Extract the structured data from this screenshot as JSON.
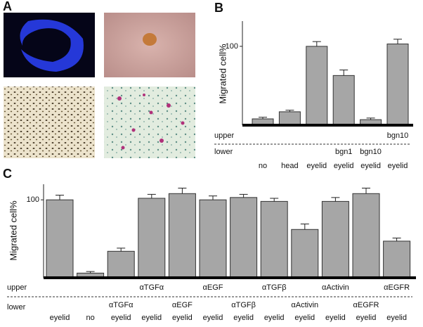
{
  "panel_a": {
    "label": "A"
  },
  "chart_data": [
    {
      "type": "bar",
      "panel": "B",
      "ylabel": "Migrated cell%",
      "row_labels": [
        "upper",
        "lower"
      ],
      "upper": [
        null,
        null,
        null,
        null,
        null,
        "bgn10"
      ],
      "lower_treatment": [
        null,
        null,
        null,
        "bgn1",
        "bgn10",
        null
      ],
      "categories": [
        "no",
        "head",
        "eyelid",
        "eyelid",
        "eyelid",
        "eyelid"
      ],
      "values": [
        8,
        17,
        100,
        63,
        7,
        103
      ],
      "errors": [
        2,
        2,
        6,
        7,
        2,
        6
      ],
      "color": "#a6a6a6",
      "ylim": [
        0,
        132
      ],
      "yticks": [
        100
      ]
    },
    {
      "type": "bar",
      "panel": "C",
      "ylabel": "Migrated cell%",
      "row_labels": [
        "upper",
        "lower"
      ],
      "upper": [
        null,
        null,
        null,
        "αTGFα",
        null,
        "αEGF",
        null,
        "αTGFβ",
        null,
        "αActivin",
        null,
        "αEGFR"
      ],
      "lower_treatment": [
        null,
        null,
        "αTGFα",
        null,
        "αEGF",
        null,
        "αTGFβ",
        null,
        "αActivin",
        null,
        "αEGFR",
        null
      ],
      "categories": [
        "eyelid",
        "no",
        "eyelid",
        "eyelid",
        "eyelid",
        "eyelid",
        "eyelid",
        "eyelid",
        "eyelid",
        "eyelid",
        "eyelid",
        "eyelid"
      ],
      "values": [
        100,
        6,
        34,
        102,
        108,
        100,
        103,
        98,
        62,
        98,
        108,
        47
      ],
      "errors": [
        6,
        2,
        4,
        5,
        7,
        5,
        4,
        4,
        7,
        5,
        7,
        4
      ],
      "color": "#a6a6a6",
      "ylim": [
        0,
        120
      ],
      "yticks": [
        100
      ]
    }
  ]
}
